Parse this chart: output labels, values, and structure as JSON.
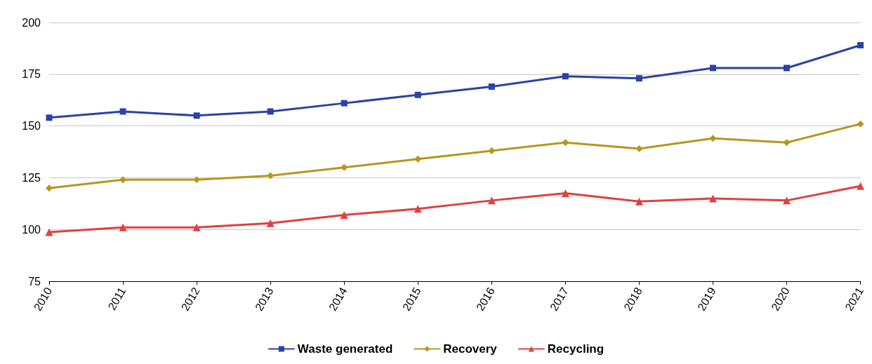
{
  "chart_data": {
    "type": "line",
    "categories": [
      "2010",
      "2011",
      "2012",
      "2013",
      "2014",
      "2015",
      "2016",
      "2017",
      "2018",
      "2019",
      "2020",
      "2021"
    ],
    "series": [
      {
        "name": "Waste generated",
        "color": "#2a42a8",
        "marker": "square",
        "values": [
          154,
          157,
          155,
          157,
          161,
          165,
          169,
          174,
          173,
          178,
          178,
          189
        ]
      },
      {
        "name": "Recovery",
        "color": "#b8961e",
        "marker": "diamond",
        "values": [
          120,
          124,
          124,
          126,
          130,
          134,
          138,
          142,
          139,
          144,
          142,
          151
        ]
      },
      {
        "name": "Recycling",
        "color": "#e04040",
        "marker": "triangle",
        "values": [
          98.7,
          101,
          101,
          103,
          107,
          110,
          114,
          117.5,
          113.5,
          115,
          114,
          121
        ]
      }
    ],
    "ylim": [
      75,
      200
    ],
    "yticks": [
      75,
      100,
      125,
      150,
      175,
      200
    ],
    "grid": "y",
    "legend": "bottom",
    "line_style": "solid"
  }
}
